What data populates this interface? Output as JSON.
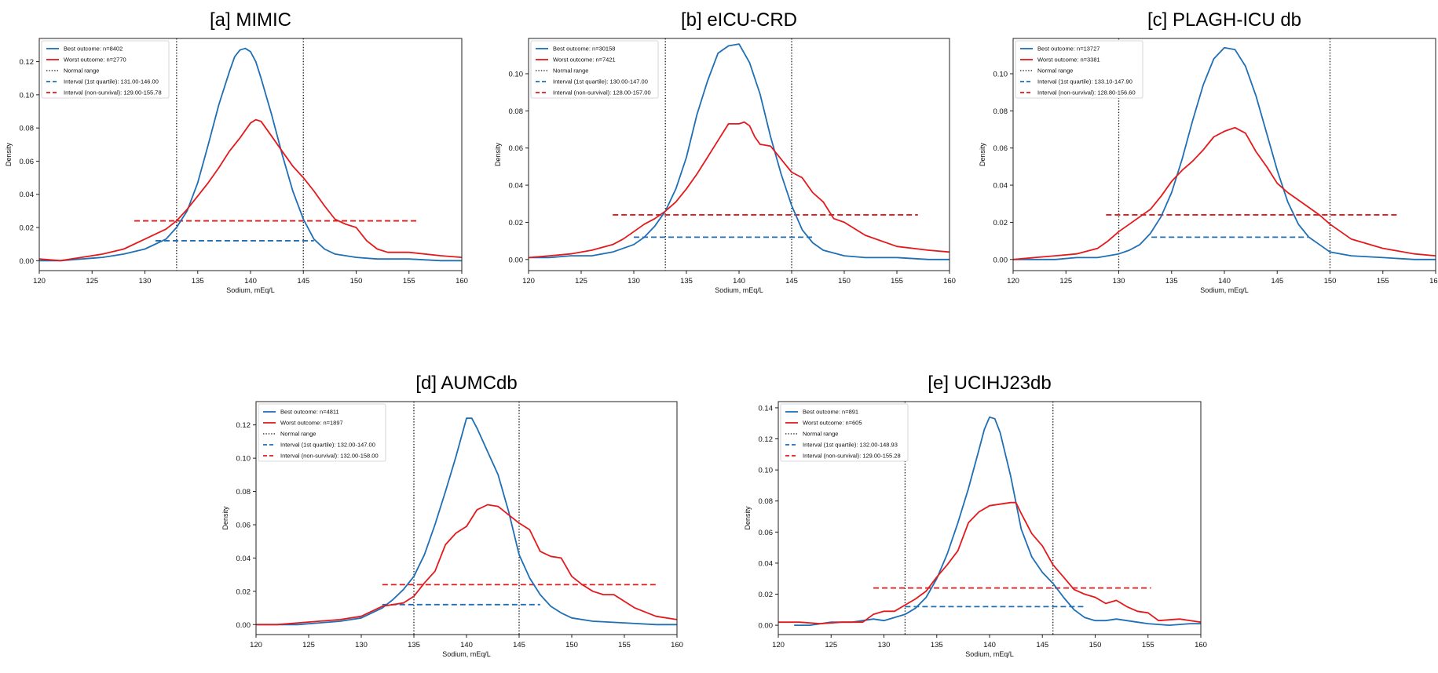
{
  "colors": {
    "best": "#1f6fb5",
    "worst": "#e3191c",
    "normal": "#111111",
    "frame": "#222222"
  },
  "chart_data": [
    {
      "type": "line",
      "title": "[a] MIMIC",
      "xlabel": "Sodium, mEq/L",
      "ylabel": "Density",
      "xlim": [
        120,
        160
      ],
      "ylim": [
        -0.006,
        0.134
      ],
      "xticks": [
        "120",
        "125",
        "130",
        "135",
        "140",
        "145",
        "150",
        "155",
        "160"
      ],
      "yticks": [
        "0.00",
        "0.02",
        "0.04",
        "0.06",
        "0.08",
        "0.10",
        "0.12"
      ],
      "legend_position": "top-left",
      "legend": [
        "Best outcome: n=8402",
        "Worst outcome: n=2770",
        "Normal range",
        "Interval (1st quartile): 131.00-146.00",
        "Interval (non-survival): 129.00-155.78"
      ],
      "normal_range": [
        133,
        145
      ],
      "interval_best": {
        "from": 131.0,
        "to": 146.0,
        "y": 0.012
      },
      "interval_worst": {
        "from": 129.0,
        "to": 155.78,
        "y": 0.024
      },
      "series": [
        {
          "name": "Best outcome: n=8402",
          "x": [
            120,
            122,
            124,
            126,
            128,
            130,
            132,
            133,
            134,
            135,
            136,
            137,
            138,
            138.5,
            139,
            139.5,
            140,
            140.5,
            141,
            142,
            143,
            144,
            145,
            146,
            147,
            148,
            150,
            152,
            155,
            158,
            160
          ],
          "y": [
            0.0,
            0.0,
            0.001,
            0.002,
            0.004,
            0.007,
            0.013,
            0.02,
            0.03,
            0.047,
            0.07,
            0.094,
            0.114,
            0.123,
            0.127,
            0.128,
            0.126,
            0.12,
            0.11,
            0.088,
            0.064,
            0.042,
            0.025,
            0.013,
            0.007,
            0.004,
            0.002,
            0.001,
            0.001,
            0.0,
            0.0
          ]
        },
        {
          "name": "Worst outcome: n=2770",
          "x": [
            120,
            122,
            124,
            126,
            128,
            130,
            132,
            133,
            134,
            135,
            136,
            137,
            138,
            139,
            140,
            140.5,
            141,
            142,
            143,
            144,
            145,
            146,
            147,
            148,
            149,
            150,
            151,
            152,
            153,
            155,
            158,
            160
          ],
          "y": [
            0.001,
            0.0,
            0.002,
            0.004,
            0.007,
            0.013,
            0.019,
            0.024,
            0.031,
            0.039,
            0.047,
            0.056,
            0.066,
            0.074,
            0.083,
            0.085,
            0.084,
            0.075,
            0.066,
            0.057,
            0.05,
            0.042,
            0.033,
            0.025,
            0.022,
            0.02,
            0.012,
            0.007,
            0.005,
            0.005,
            0.003,
            0.002
          ]
        }
      ]
    },
    {
      "type": "line",
      "title": "[b] eICU-CRD",
      "xlabel": "Sodium, mEq/L",
      "ylabel": "Density",
      "xlim": [
        120,
        160
      ],
      "ylim": [
        -0.006,
        0.119
      ],
      "xticks": [
        "120",
        "125",
        "130",
        "135",
        "140",
        "145",
        "150",
        "155",
        "160"
      ],
      "yticks": [
        "0.00",
        "0.02",
        "0.04",
        "0.06",
        "0.08",
        "0.10"
      ],
      "legend_position": "top-left",
      "legend": [
        "Best outcome: n=30158",
        "Worst outcome: n=7421",
        "Normal range",
        "Interval (1st quartile): 130.00-147.00",
        "Interval (non-survival): 128.00-157.00"
      ],
      "normal_range": [
        133,
        145
      ],
      "interval_best": {
        "from": 130.0,
        "to": 147.0,
        "y": 0.012
      },
      "interval_worst": {
        "from": 128.0,
        "to": 157.0,
        "y": 0.024
      },
      "series": [
        {
          "name": "Best outcome: n=30158",
          "x": [
            120,
            122,
            124,
            126,
            128,
            130,
            131,
            132,
            133,
            134,
            135,
            136,
            137,
            138,
            139,
            140,
            141,
            142,
            143,
            144,
            145,
            146,
            147,
            148,
            150,
            152,
            155,
            158,
            160
          ],
          "y": [
            0.001,
            0.001,
            0.002,
            0.002,
            0.004,
            0.008,
            0.012,
            0.018,
            0.026,
            0.038,
            0.055,
            0.078,
            0.096,
            0.111,
            0.115,
            0.116,
            0.106,
            0.089,
            0.066,
            0.046,
            0.029,
            0.016,
            0.009,
            0.005,
            0.002,
            0.001,
            0.001,
            0.0,
            0.0
          ]
        },
        {
          "name": "Worst outcome: n=7421",
          "x": [
            120,
            122,
            124,
            126,
            128,
            129,
            130,
            131,
            132,
            133,
            134,
            135,
            136,
            137,
            138,
            139,
            140,
            140.5,
            141,
            141.5,
            142,
            143,
            144,
            145,
            146,
            147,
            148,
            149,
            150,
            152,
            155,
            158,
            160
          ],
          "y": [
            0.001,
            0.002,
            0.003,
            0.005,
            0.008,
            0.011,
            0.015,
            0.019,
            0.022,
            0.026,
            0.031,
            0.038,
            0.046,
            0.055,
            0.064,
            0.073,
            0.073,
            0.074,
            0.072,
            0.066,
            0.062,
            0.061,
            0.054,
            0.047,
            0.044,
            0.036,
            0.031,
            0.022,
            0.02,
            0.013,
            0.007,
            0.005,
            0.004
          ]
        }
      ]
    },
    {
      "type": "line",
      "title": "[c] PLAGH-ICU db",
      "xlabel": "Sodium, mEq/L",
      "ylabel": "Density",
      "xlim": [
        120,
        160
      ],
      "ylim": [
        -0.006,
        0.119
      ],
      "xticks": [
        "120",
        "125",
        "130",
        "135",
        "140",
        "145",
        "150",
        "155",
        "160"
      ],
      "yticks": [
        "0.00",
        "0.02",
        "0.04",
        "0.06",
        "0.08",
        "0.10"
      ],
      "legend_position": "top-left",
      "legend": [
        "Best outcome: n=13727",
        "Worst outcome: n=3381",
        "Normal range",
        "Interval (1st quartile): 133.10-147.90",
        "Interval (non-survival): 128.80-156.60"
      ],
      "normal_range": [
        130,
        150
      ],
      "interval_best": {
        "from": 133.1,
        "to": 147.9,
        "y": 0.012
      },
      "interval_worst": {
        "from": 128.8,
        "to": 156.6,
        "y": 0.024
      },
      "series": [
        {
          "name": "Best outcome: n=13727",
          "x": [
            120,
            122,
            124,
            126,
            128,
            130,
            131,
            132,
            133,
            134,
            135,
            136,
            137,
            138,
            139,
            140,
            141,
            142,
            143,
            144,
            145,
            146,
            147,
            148,
            149,
            150,
            152,
            155,
            158,
            160
          ],
          "y": [
            0.0,
            0.0,
            0.0,
            0.001,
            0.001,
            0.003,
            0.005,
            0.008,
            0.014,
            0.023,
            0.036,
            0.054,
            0.075,
            0.094,
            0.108,
            0.114,
            0.113,
            0.104,
            0.088,
            0.068,
            0.048,
            0.031,
            0.019,
            0.012,
            0.008,
            0.004,
            0.002,
            0.001,
            0.0,
            0.0
          ]
        },
        {
          "name": "Worst outcome: n=3381",
          "x": [
            120,
            122,
            124,
            126,
            128,
            129,
            130,
            131,
            132,
            133,
            134,
            135,
            136,
            137,
            138,
            139,
            140,
            141,
            142,
            143,
            144,
            145,
            146,
            147,
            148,
            149,
            150,
            152,
            155,
            158,
            160
          ],
          "y": [
            0.0,
            0.001,
            0.002,
            0.003,
            0.006,
            0.01,
            0.015,
            0.019,
            0.023,
            0.027,
            0.034,
            0.042,
            0.048,
            0.053,
            0.059,
            0.066,
            0.069,
            0.071,
            0.068,
            0.058,
            0.05,
            0.041,
            0.036,
            0.032,
            0.028,
            0.024,
            0.019,
            0.011,
            0.006,
            0.003,
            0.002
          ]
        }
      ]
    },
    {
      "type": "line",
      "title": "[d] AUMCdb",
      "xlabel": "Sodium, mEq/L",
      "ylabel": "Density",
      "xlim": [
        120,
        160
      ],
      "ylim": [
        -0.006,
        0.134
      ],
      "xticks": [
        "120",
        "125",
        "130",
        "135",
        "140",
        "145",
        "150",
        "155",
        "160"
      ],
      "yticks": [
        "0.00",
        "0.02",
        "0.04",
        "0.06",
        "0.08",
        "0.10",
        "0.12"
      ],
      "legend_position": "top-left",
      "legend": [
        "Best outcome: n=4811",
        "Worst outcome: n=1897",
        "Normal range",
        "Interval (1st quartile): 132.00-147.00",
        "Interval (non-survival): 132.00-158.00"
      ],
      "normal_range": [
        135,
        145
      ],
      "interval_best": {
        "from": 132.0,
        "to": 147.0,
        "y": 0.012
      },
      "interval_worst": {
        "from": 132.0,
        "to": 158.0,
        "y": 0.024
      },
      "series": [
        {
          "name": "Best outcome: n=4811",
          "x": [
            120,
            122,
            124,
            126,
            128,
            130,
            132,
            133,
            134,
            135,
            136,
            137,
            138,
            139,
            140,
            140.5,
            141,
            142,
            143,
            144,
            145,
            146,
            147,
            148,
            149,
            150,
            152,
            155,
            158,
            160
          ],
          "y": [
            0.0,
            0.0,
            0.0,
            0.001,
            0.002,
            0.004,
            0.01,
            0.015,
            0.021,
            0.029,
            0.042,
            0.06,
            0.08,
            0.101,
            0.124,
            0.124,
            0.118,
            0.104,
            0.09,
            0.068,
            0.042,
            0.028,
            0.018,
            0.011,
            0.007,
            0.004,
            0.002,
            0.001,
            0.0,
            0.0
          ]
        },
        {
          "name": "Worst outcome: n=1897",
          "x": [
            120,
            122,
            124,
            126,
            128,
            130,
            131,
            132,
            133,
            134,
            135,
            136,
            137,
            138,
            139,
            140,
            141,
            142,
            143,
            144,
            145,
            146,
            147,
            148,
            149,
            150,
            151,
            152,
            153,
            154,
            155,
            156,
            158,
            160
          ],
          "y": [
            0.0,
            0.0,
            0.001,
            0.002,
            0.003,
            0.005,
            0.008,
            0.011,
            0.012,
            0.013,
            0.017,
            0.025,
            0.032,
            0.048,
            0.055,
            0.059,
            0.069,
            0.072,
            0.071,
            0.066,
            0.061,
            0.057,
            0.044,
            0.041,
            0.04,
            0.029,
            0.024,
            0.02,
            0.018,
            0.018,
            0.014,
            0.01,
            0.005,
            0.003
          ]
        }
      ]
    },
    {
      "type": "line",
      "title": "[e] UCIHJ23db",
      "xlabel": "Sodium, mEq/L",
      "ylabel": "Density",
      "xlim": [
        120,
        160
      ],
      "ylim": [
        -0.006,
        0.144
      ],
      "xticks": [
        "120",
        "125",
        "130",
        "135",
        "140",
        "145",
        "150",
        "155",
        "160"
      ],
      "yticks": [
        "0.00",
        "0.02",
        "0.04",
        "0.06",
        "0.08",
        "0.10",
        "0.12",
        "0.14"
      ],
      "legend_position": "top-left",
      "legend": [
        "Best outcome: n=891",
        "Worst outcome: n=605",
        "Normal range",
        "Interval (1st quartile): 132.00-148.93",
        "Interval (non-survival): 129.00-155.28"
      ],
      "normal_range": [
        132,
        146
      ],
      "interval_best": {
        "from": 132.0,
        "to": 148.93,
        "y": 0.012
      },
      "interval_worst": {
        "from": 129.0,
        "to": 155.28,
        "y": 0.024
      },
      "series": [
        {
          "name": "Best outcome: n=891",
          "x": [
            121.5,
            123,
            125,
            127,
            128,
            129,
            130,
            131,
            132,
            133,
            134,
            135,
            136,
            137,
            138,
            139,
            139.5,
            140,
            140.5,
            141,
            142,
            143,
            144,
            145,
            146,
            147,
            148,
            149,
            150,
            151,
            152,
            153,
            154,
            155,
            157,
            159,
            160
          ],
          "y": [
            0.0,
            0.0,
            0.002,
            0.002,
            0.003,
            0.004,
            0.003,
            0.005,
            0.007,
            0.011,
            0.018,
            0.03,
            0.046,
            0.066,
            0.088,
            0.113,
            0.126,
            0.134,
            0.133,
            0.124,
            0.096,
            0.062,
            0.044,
            0.034,
            0.027,
            0.018,
            0.01,
            0.005,
            0.003,
            0.003,
            0.004,
            0.003,
            0.002,
            0.001,
            0.0,
            0.001,
            0.001
          ]
        },
        {
          "name": "Worst outcome: n=605",
          "x": [
            120,
            122,
            124,
            126,
            128,
            129,
            130,
            131,
            132,
            133,
            134,
            135,
            136,
            137,
            138,
            139,
            140,
            141,
            142,
            142.5,
            143,
            144,
            145,
            146,
            147,
            148,
            149,
            150,
            151,
            152,
            153,
            154,
            155,
            156,
            158,
            160
          ],
          "y": [
            0.002,
            0.002,
            0.001,
            0.002,
            0.002,
            0.007,
            0.009,
            0.009,
            0.013,
            0.017,
            0.022,
            0.031,
            0.039,
            0.048,
            0.066,
            0.073,
            0.077,
            0.078,
            0.079,
            0.079,
            0.072,
            0.059,
            0.051,
            0.039,
            0.031,
            0.023,
            0.02,
            0.018,
            0.014,
            0.016,
            0.012,
            0.009,
            0.008,
            0.003,
            0.004,
            0.002
          ]
        }
      ]
    }
  ]
}
